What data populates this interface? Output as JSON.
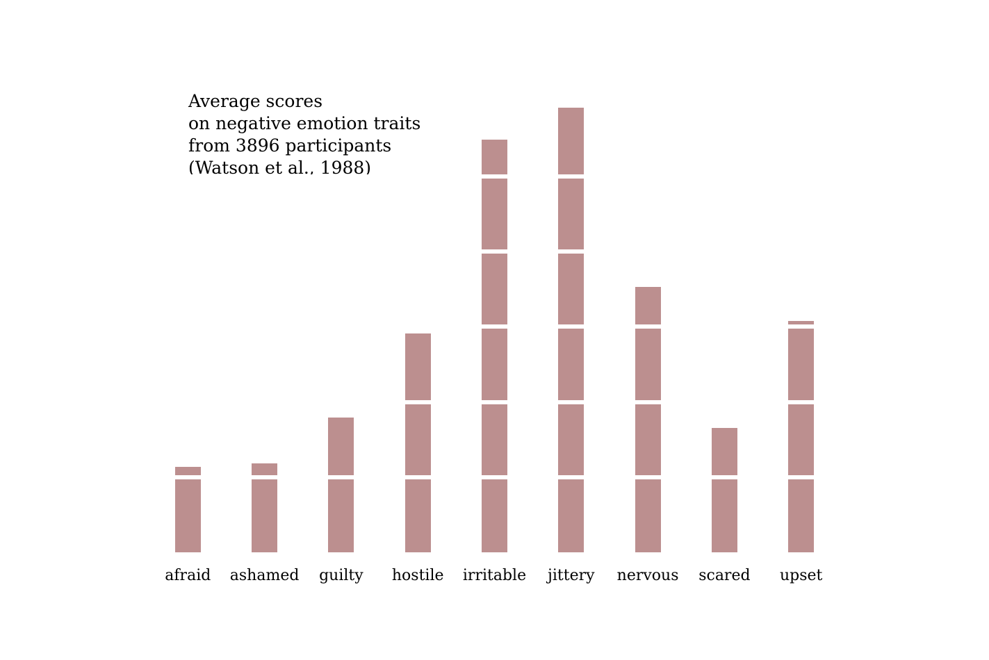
{
  "title": {
    "lines": [
      "Average scores",
      "on negative emotion traits",
      "from 3896 participants",
      "(Watson et al., 1988)"
    ]
  },
  "chart_data": {
    "type": "bar",
    "title": "Average scores\non negative emotion traits\nfrom 3896 participants\n(Watson et al., 1988)",
    "categories": [
      "afraid",
      "ashamed",
      "guilty",
      "hostile",
      "irritable",
      "jittery",
      "nervous",
      "scared",
      "upset"
    ],
    "values": [
      1.14,
      1.18,
      1.79,
      2.91,
      5.49,
      5.91,
      3.53,
      1.65,
      3.08
    ],
    "xlabel": "",
    "ylabel": "",
    "ylim": [
      0,
      6
    ],
    "gridlines": [
      1,
      2,
      3,
      4,
      5
    ],
    "grid_style": "white horizontal lines drawn over the bars (Tufte minimal style), no visible axes, no ticks, no y-axis labels",
    "legend": "none",
    "bar_color": "#bc8f8f",
    "background_color": "#ffffff",
    "text_color": "#000000"
  }
}
